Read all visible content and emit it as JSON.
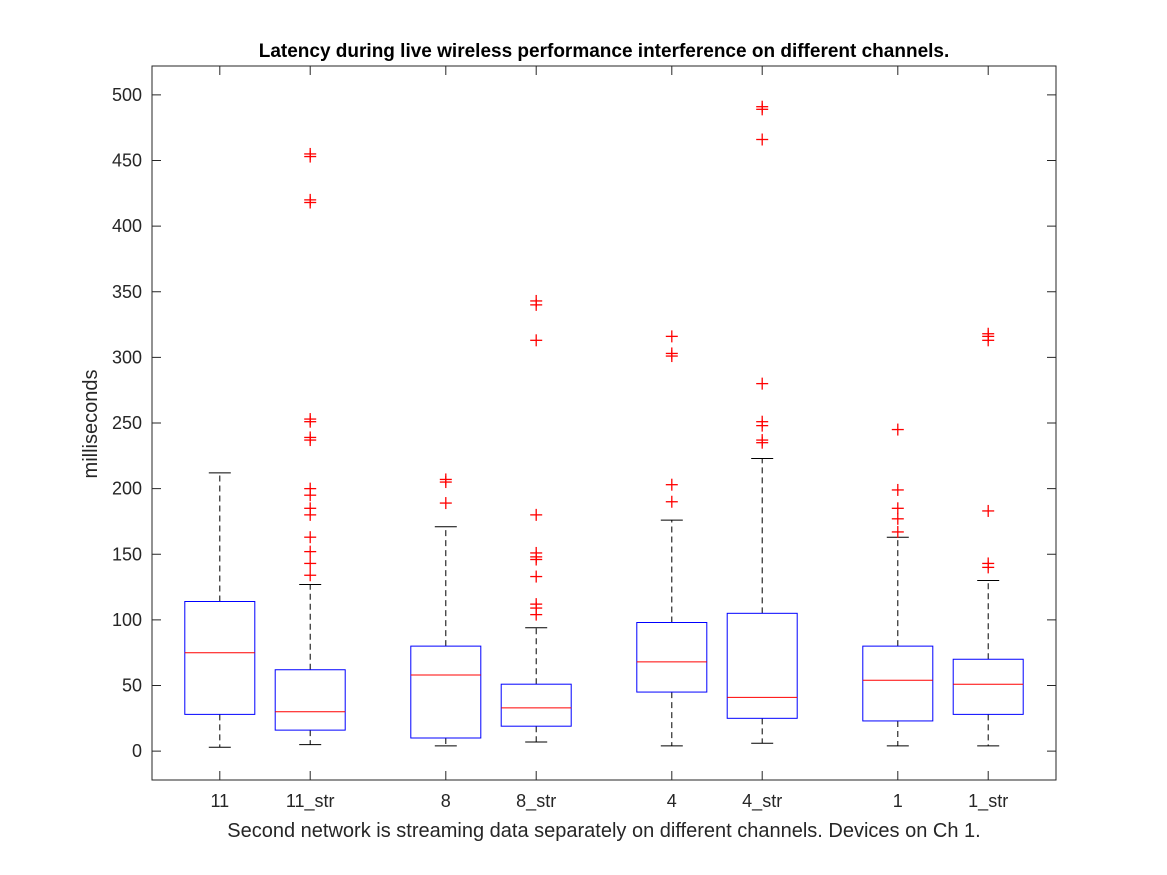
{
  "chart_data": {
    "type": "box",
    "title": "Latency during live wireless performance interference on different channels.",
    "xlabel": "Second network is streaming data separately on different channels. Devices on Ch 1.",
    "ylabel": "milliseconds",
    "ylim": [
      -22,
      522
    ],
    "yticks": [
      0,
      50,
      100,
      150,
      200,
      250,
      300,
      350,
      400,
      450,
      500
    ],
    "categories": [
      "11",
      "11_str",
      "8",
      "8_str",
      "4",
      "4_str",
      "1",
      "1_str"
    ],
    "x_positions": [
      1,
      2,
      3.5,
      4.5,
      6,
      7,
      8.5,
      9.5
    ],
    "xlim": [
      0.25,
      10.25
    ],
    "boxes": [
      {
        "whisker_low": 3,
        "q1": 28,
        "median": 75,
        "q3": 114,
        "whisker_high": 212,
        "outliers": []
      },
      {
        "whisker_low": 5,
        "q1": 16,
        "median": 30,
        "q3": 62,
        "whisker_high": 127,
        "outliers": [
          134,
          143,
          152,
          163,
          180,
          185,
          195,
          200,
          237,
          239,
          251,
          253,
          418,
          420,
          453,
          455
        ]
      },
      {
        "whisker_low": 4,
        "q1": 10,
        "median": 58,
        "q3": 80,
        "whisker_high": 171,
        "outliers": [
          189,
          205,
          207
        ]
      },
      {
        "whisker_low": 7,
        "q1": 19,
        "median": 33,
        "q3": 51,
        "whisker_high": 94,
        "outliers": [
          104,
          109,
          112,
          133,
          146,
          148,
          151,
          180,
          313,
          340,
          343
        ]
      },
      {
        "whisker_low": 4,
        "q1": 45,
        "median": 68,
        "q3": 98,
        "whisker_high": 176,
        "outliers": [
          190,
          203,
          301,
          303,
          316
        ]
      },
      {
        "whisker_low": 6,
        "q1": 25,
        "median": 41,
        "q3": 105,
        "whisker_high": 223,
        "outliers": [
          235,
          237,
          248,
          251,
          280,
          466,
          489,
          491
        ]
      },
      {
        "whisker_low": 4,
        "q1": 23,
        "median": 54,
        "q3": 80,
        "whisker_high": 163,
        "outliers": [
          167,
          177,
          185,
          199,
          245
        ]
      },
      {
        "whisker_low": 4,
        "q1": 28,
        "median": 51,
        "q3": 70,
        "whisker_high": 130,
        "outliers": [
          140,
          143,
          183,
          313,
          316,
          318
        ]
      }
    ],
    "grid": false,
    "colors": {
      "box": "#0000ff",
      "median": "#ff0000",
      "outlier": "#ff0000",
      "whisker": "#000000",
      "axis": "#262626"
    }
  }
}
